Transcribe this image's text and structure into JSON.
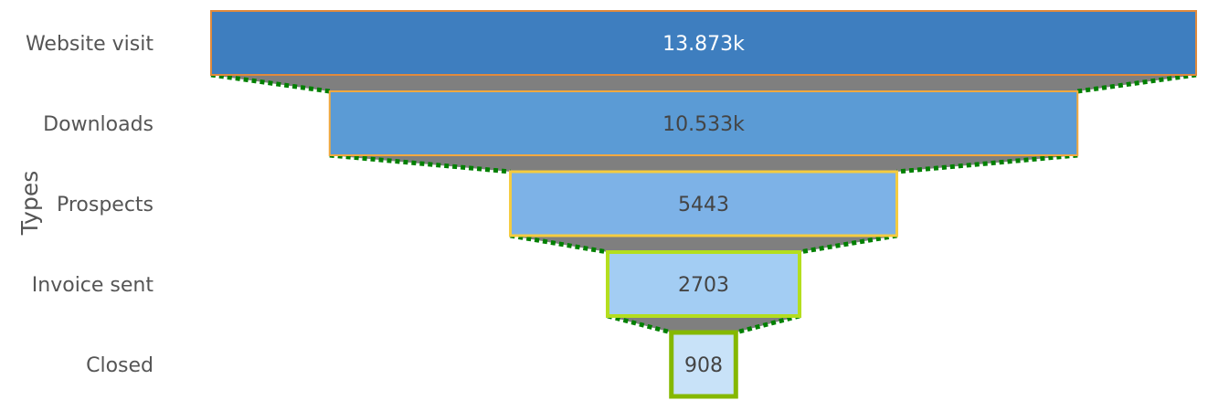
{
  "chart_data": {
    "type": "funnel",
    "orientation": "horizontal",
    "categories": [
      "Website visit",
      "Downloads",
      "Prospects",
      "Invoice sent",
      "Closed"
    ],
    "values": [
      13873,
      10533,
      5443,
      2703,
      908
    ],
    "value_labels": [
      "13.873k",
      "10.533k",
      "5443",
      "2703",
      "908"
    ],
    "ylabel": "Types",
    "connector": {
      "fill": "#7f7f7f",
      "line_color": "#008000",
      "line_style": "dotted"
    },
    "colors": {
      "fills": [
        "#3e7ebf",
        "#5b9bd5",
        "#7db2e7",
        "#a3cdf3",
        "#c8e2f8"
      ],
      "borders": [
        "#e08a3c",
        "#f2a940",
        "#f5cc40",
        "#b4de1e",
        "#85b800"
      ],
      "text": [
        "#ffffff",
        "#444444",
        "#444444",
        "#444444",
        "#444444"
      ]
    }
  }
}
